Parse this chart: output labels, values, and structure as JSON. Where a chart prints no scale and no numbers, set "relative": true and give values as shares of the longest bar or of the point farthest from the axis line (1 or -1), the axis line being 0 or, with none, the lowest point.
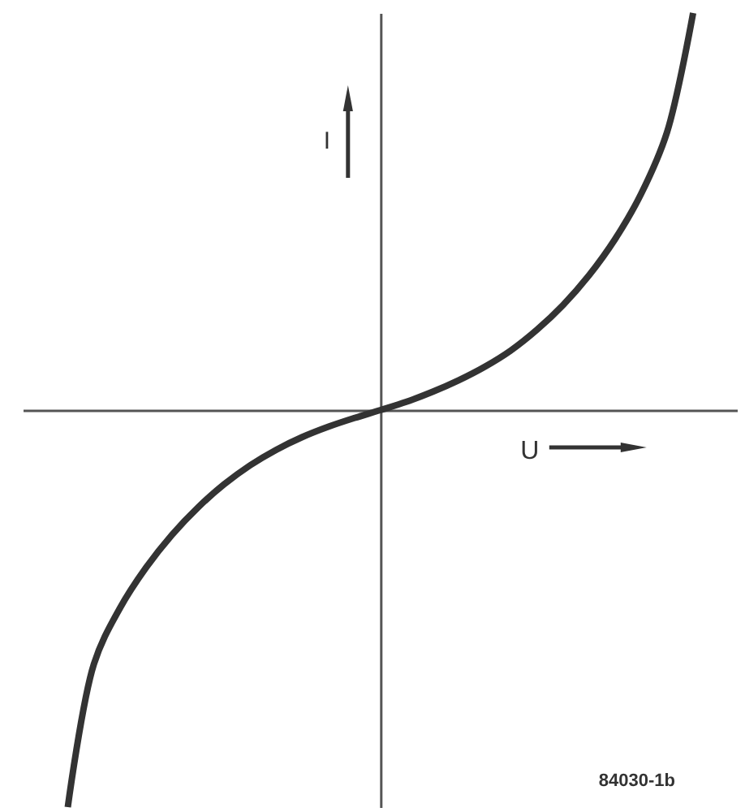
{
  "chart_data": {
    "type": "line",
    "xlabel": "U",
    "ylabel": "I",
    "annotations": [
      "84030-1b"
    ],
    "relative": true,
    "grid": false,
    "categories": [
      null,
      null,
      null,
      null,
      null,
      null,
      null,
      null,
      null,
      null,
      null,
      null,
      null,
      null,
      null,
      null,
      null,
      null,
      null,
      null,
      null,
      null,
      null,
      null,
      null
    ],
    "series": [
      {
        "color": "#333333",
        "values": [
          -1.0,
          -0.64,
          -0.499,
          -0.397,
          -0.314,
          -0.245,
          -0.187,
          -0.139,
          -0.1,
          -0.068,
          -0.042,
          -0.02,
          0,
          0.021,
          0.046,
          0.075,
          0.109,
          0.15,
          0.202,
          0.264,
          0.339,
          0.43,
          0.544,
          0.7,
          1.0
        ]
      }
    ]
  }
}
